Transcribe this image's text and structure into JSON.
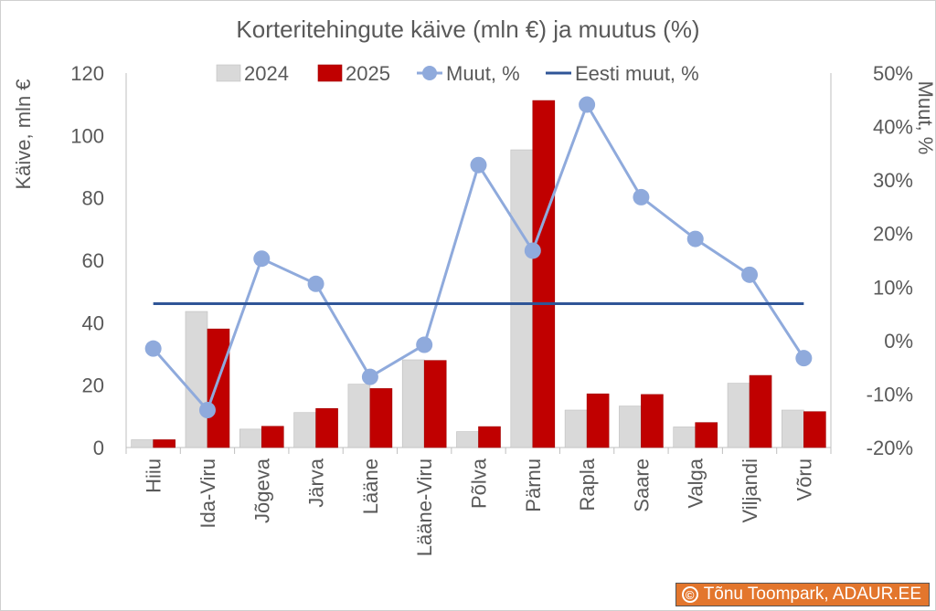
{
  "chart_data": {
    "type": "bar",
    "title": "Korteritehingute käive (mln €) ja muutus (%)",
    "ylabel": "Käive, mln €",
    "y2label": "Muut, %",
    "ylim": [
      0,
      120
    ],
    "yticks": [
      "0",
      "20",
      "40",
      "60",
      "80",
      "100",
      "120"
    ],
    "y2lim": [
      -20,
      50
    ],
    "y2ticks": [
      "-20%",
      "-10%",
      "0%",
      "10%",
      "20%",
      "30%",
      "40%",
      "50%"
    ],
    "categories": [
      "Hiiu",
      "Ida-Viru",
      "Jõgeva",
      "Järva",
      "Lääne",
      "Lääne-Viru",
      "Põlva",
      "Pärnu",
      "Rapla",
      "Saare",
      "Valga",
      "Viljandi",
      "Võru"
    ],
    "series": [
      {
        "name": "2024",
        "kind": "bar",
        "axis": "left",
        "color": "#d9d9d9",
        "values": [
          2.5,
          43.6,
          5.9,
          11.2,
          20.3,
          28.1,
          5.1,
          95.4,
          12.0,
          13.3,
          6.6,
          20.6,
          12.0
        ]
      },
      {
        "name": "2025",
        "kind": "bar",
        "axis": "left",
        "color": "#c00000",
        "values": [
          2.5,
          38.0,
          6.8,
          12.5,
          18.9,
          27.9,
          6.7,
          111.2,
          17.2,
          17.0,
          8.0,
          23.1,
          11.5
        ]
      },
      {
        "name": "Muut, %",
        "kind": "line-marker",
        "axis": "right",
        "color": "#8faadc",
        "values": [
          -1.5,
          -13.0,
          15.3,
          10.6,
          -6.8,
          -0.8,
          32.8,
          16.8,
          44.1,
          26.8,
          19.0,
          12.3,
          -3.3
        ]
      },
      {
        "name": "Eesti muut, %",
        "kind": "line",
        "axis": "right",
        "color": "#2f5597",
        "values": [
          6.9,
          6.9,
          6.9,
          6.9,
          6.9,
          6.9,
          6.9,
          6.9,
          6.9,
          6.9,
          6.9,
          6.9,
          6.9
        ]
      }
    ],
    "legend": "top",
    "grid": false
  },
  "credit": {
    "icon": "copyright-icon",
    "symbol": "©",
    "text": "Tõnu Toompark, ADAUR.EE",
    "color": "#e3762d"
  }
}
